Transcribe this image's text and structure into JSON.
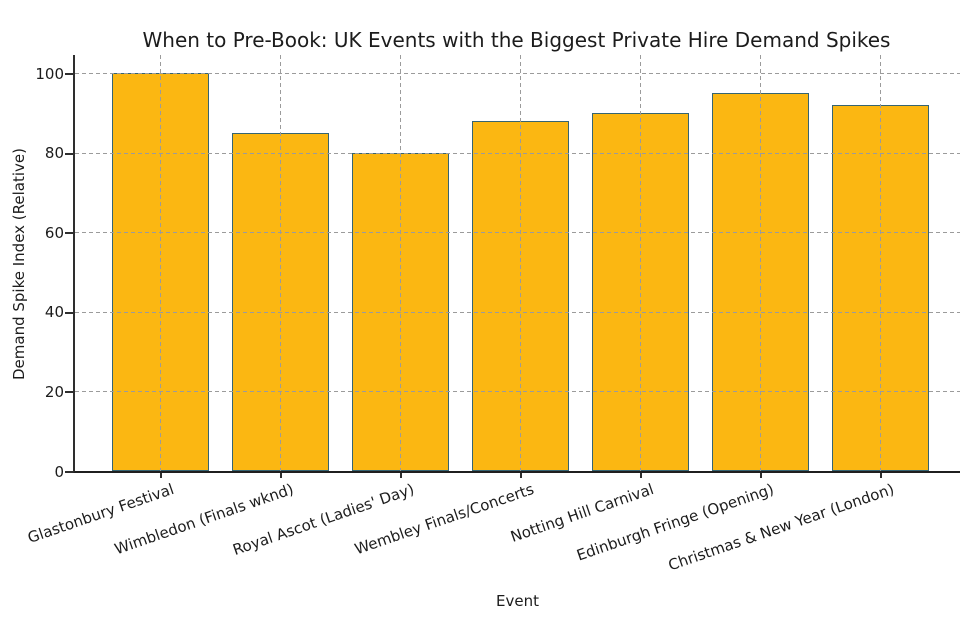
{
  "chart_data": {
    "type": "bar",
    "title": "When to Pre-Book: UK Events with the Biggest Private Hire Demand Spikes",
    "xlabel": "Event",
    "ylabel": "Demand Spike Index (Relative)",
    "categories": [
      "Glastonbury Festival",
      "Wimbledon (Finals wknd)",
      "Royal Ascot (Ladies' Day)",
      "Wembley Finals/Concerts",
      "Notting Hill Carnival",
      "Edinburgh Fringe (Opening)",
      "Christmas & New Year (London)"
    ],
    "values": [
      100,
      85,
      80,
      88,
      90,
      95,
      92
    ],
    "ylim": [
      0,
      100
    ],
    "yticks": [
      0,
      20,
      40,
      60,
      80,
      100
    ],
    "bar_color": "#FBB712",
    "bar_edge_color": "#356472",
    "grid": {
      "style": "dashed",
      "color": "#9b9b9b",
      "horizontal": true,
      "vertical": true,
      "above_bars": true
    },
    "xtick_rotation_deg": 19,
    "legend": "none"
  }
}
